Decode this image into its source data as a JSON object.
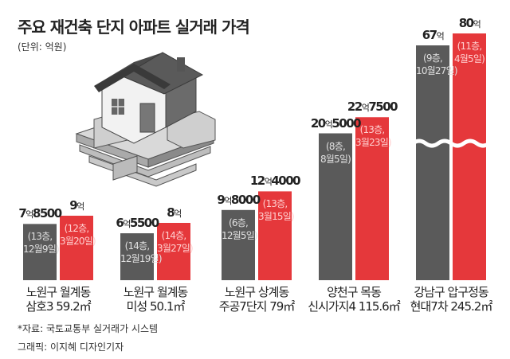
{
  "title": "주요 재건축 단지 아파트 실거래 가격",
  "unit": "(단위: 억원)",
  "source": "*자료: 국토교통부 실거래가 시스템",
  "credit": "그래픽: 이지혜 디자인기자",
  "colors": {
    "old": "#5a5a5a",
    "new": "#e5383b",
    "text": "#222222"
  },
  "chart_data": {
    "type": "bar",
    "title": "주요 재건축 단지 아파트 실거래 가격",
    "ylabel": "억원",
    "axis_break": "between 30 and 60 억원 (wavy break on the tallest pair)",
    "categories": [
      "노원구 월계동 삼호3 59.2㎡",
      "노원구 월계동 미성 50.1㎡",
      "노원구 상계동 주공7단지 79㎡",
      "양천구 목동 신시가지4 115.6㎡",
      "강남구 압구정동 현대7차 245.2㎡"
    ],
    "groups": [
      {
        "line1": "노원구 월계동",
        "line2": "삼호3 59.2㎡",
        "bars": [
          {
            "value": 7.85,
            "label_big": "7",
            "label_small": "억",
            "label_tail": "8500",
            "note1": "(13층,",
            "note2": "12월9일)",
            "series": "old"
          },
          {
            "value": 9.0,
            "label_big": "9",
            "label_small": "억",
            "label_tail": "",
            "note1": "(12층,",
            "note2": "3월20일)",
            "series": "new"
          }
        ]
      },
      {
        "line1": "노원구 월계동",
        "line2": "미성 50.1㎡",
        "bars": [
          {
            "value": 6.55,
            "label_big": "6",
            "label_small": "억",
            "label_tail": "5500",
            "note1": "(14층,",
            "note2": "12월19일)",
            "series": "old"
          },
          {
            "value": 8.0,
            "label_big": "8",
            "label_small": "억",
            "label_tail": "",
            "note1": "(14층,",
            "note2": "3월27일)",
            "series": "new"
          }
        ]
      },
      {
        "line1": "노원구 상계동",
        "line2": "주공7단지 79㎡",
        "bars": [
          {
            "value": 9.8,
            "label_big": "9",
            "label_small": "억",
            "label_tail": "8000",
            "note1": "(6층,",
            "note2": "12월5일)",
            "series": "old"
          },
          {
            "value": 12.4,
            "label_big": "12",
            "label_small": "억",
            "label_tail": "4000",
            "note1": "(13층,",
            "note2": "3월15일)",
            "series": "new"
          }
        ]
      },
      {
        "line1": "양천구  목동",
        "line2": "신시가지4 115.6㎡",
        "bars": [
          {
            "value": 20.5,
            "label_big": "20",
            "label_small": "억",
            "label_tail": "5000",
            "note1": "(8층,",
            "note2": "8월5일)",
            "series": "old"
          },
          {
            "value": 22.75,
            "label_big": "22",
            "label_small": "억",
            "label_tail": "7500",
            "note1": "(13층,",
            "note2": "3월23일)",
            "series": "new"
          }
        ]
      },
      {
        "line1": "강남구 압구정동",
        "line2": "현대7차 245.2㎡",
        "bars": [
          {
            "value": 67,
            "label_big": "67",
            "label_small": "억",
            "label_tail": "",
            "note1": "(9층,",
            "note2": "10월27일)",
            "series": "old"
          },
          {
            "value": 80,
            "label_big": "80",
            "label_small": "억",
            "label_tail": "",
            "note1": "(11층,",
            "note2": "4월5일)",
            "series": "new"
          }
        ]
      }
    ]
  }
}
